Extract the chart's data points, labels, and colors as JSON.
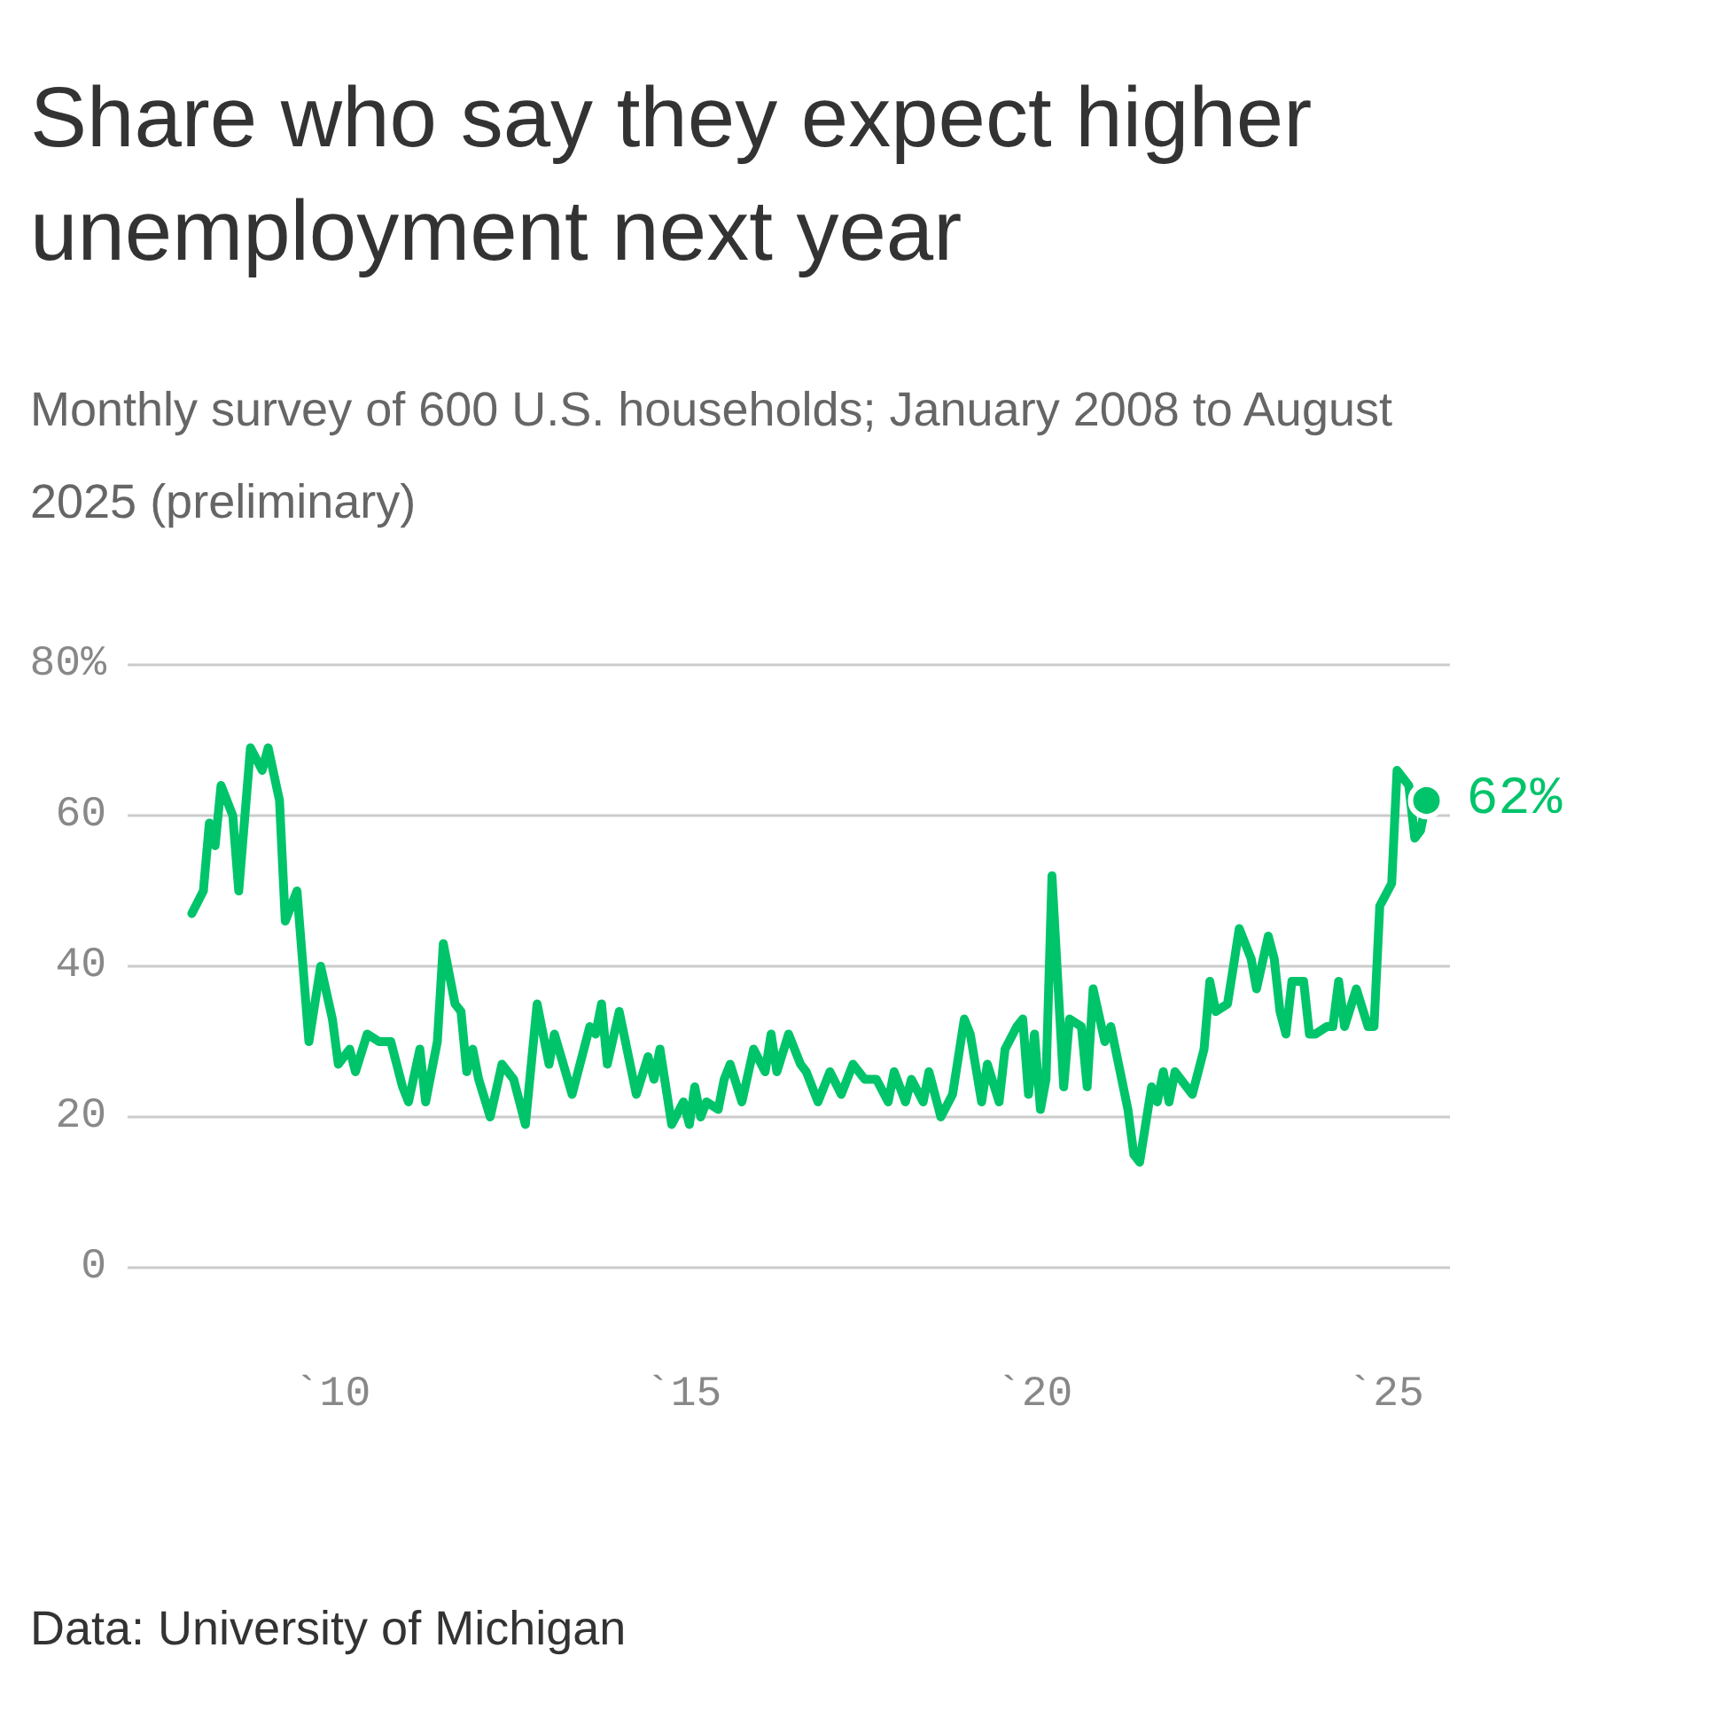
{
  "chart_data": {
    "type": "line",
    "title": "Share who say they expect higher unemployment next year",
    "subtitle": "Monthly survey of 600 U.S. households; January 2008 to August 2025 (preliminary)",
    "annotations": [
      "Data: University of Michigan",
      {
        "text": "62%",
        "x": "2025-08",
        "y": 62
      }
    ],
    "x": [
      "2008-01",
      "2008-03",
      "2008-04",
      "2008-05",
      "2008-06",
      "2008-08",
      "2008-09",
      "2008-11",
      "2009-01",
      "2009-02",
      "2009-04",
      "2009-05",
      "2009-07",
      "2009-09",
      "2009-11",
      "2010-01",
      "2010-02",
      "2010-04",
      "2010-05",
      "2010-07",
      "2010-09",
      "2010-11",
      "2011-01",
      "2011-02",
      "2011-04",
      "2011-05",
      "2011-07",
      "2011-08",
      "2011-10",
      "2011-11",
      "2011-12",
      "2012-01",
      "2012-02",
      "2012-04",
      "2012-06",
      "2012-08",
      "2012-10",
      "2012-12",
      "2013-02",
      "2013-03",
      "2013-06",
      "2013-09",
      "2013-10",
      "2013-11",
      "2013-12",
      "2014-02",
      "2014-05",
      "2014-07",
      "2014-08",
      "2014-09",
      "2014-11",
      "2015-01",
      "2015-02",
      "2015-03",
      "2015-04",
      "2015-05",
      "2015-07",
      "2015-08",
      "2015-09",
      "2015-11",
      "2016-01",
      "2016-03",
      "2016-04",
      "2016-05",
      "2016-07",
      "2016-09",
      "2016-10",
      "2016-12",
      "2017-02",
      "2017-04",
      "2017-06",
      "2017-08",
      "2017-10",
      "2017-12",
      "2018-01",
      "2018-03",
      "2018-04",
      "2018-06",
      "2018-07",
      "2018-09",
      "2018-11",
      "2019-01",
      "2019-02",
      "2019-04",
      "2019-05",
      "2019-07",
      "2019-08",
      "2019-10",
      "2019-11",
      "2019-12",
      "2020-01",
      "2020-02",
      "2020-03",
      "2020-04",
      "2020-06",
      "2020-07",
      "2020-09",
      "2020-10",
      "2020-11",
      "2021-01",
      "2021-02",
      "2021-05",
      "2021-06",
      "2021-07",
      "2021-09",
      "2021-10",
      "2021-11",
      "2021-12",
      "2022-01",
      "2022-04",
      "2022-06",
      "2022-07",
      "2022-08",
      "2022-10",
      "2022-11",
      "2022-12",
      "2023-02",
      "2023-03",
      "2023-05",
      "2023-06",
      "2023-07",
      "2023-08",
      "2023-09",
      "2023-11",
      "2023-12",
      "2024-01",
      "2024-03",
      "2024-04",
      "2024-05",
      "2024-06",
      "2024-08",
      "2024-10",
      "2024-11",
      "2024-12",
      "2025-02",
      "2025-03",
      "2025-05",
      "2025-06",
      "2025-07",
      "2025-08"
    ],
    "series": [
      {
        "color": "#00c46a",
        "values": [
          47,
          50,
          59,
          56,
          64,
          60,
          50,
          69,
          66,
          69,
          62,
          46,
          50,
          30,
          40,
          33,
          27,
          29,
          26,
          31,
          30,
          30,
          24,
          22,
          29,
          22,
          30,
          43,
          35,
          34,
          26,
          29,
          25,
          20,
          27,
          25,
          19,
          35,
          27,
          31,
          23,
          32,
          31,
          35,
          27,
          34,
          23,
          28,
          25,
          29,
          19,
          22,
          19,
          24,
          20,
          22,
          21,
          25,
          27,
          22,
          29,
          26,
          31,
          26,
          31,
          27,
          26,
          22,
          26,
          23,
          27,
          25,
          25,
          22,
          26,
          22,
          25,
          22,
          26,
          20,
          23,
          33,
          31,
          22,
          27,
          22,
          29,
          32,
          33,
          23,
          31,
          21,
          25,
          52,
          24,
          33,
          32,
          24,
          37,
          30,
          32,
          21,
          15,
          14,
          24,
          22,
          26,
          22,
          26,
          23,
          29,
          38,
          34,
          35,
          40,
          45,
          41,
          37,
          44,
          41,
          34,
          31,
          38,
          38,
          31,
          31,
          32,
          32,
          38,
          32,
          37,
          32,
          32,
          48,
          51,
          66,
          64,
          57,
          58,
          62
        ]
      }
    ],
    "xlim": [
      "2007-02",
      "2025-12"
    ],
    "xticks": [
      {
        "value": "2010-01",
        "label": "`10"
      },
      {
        "value": "2015-01",
        "label": "`15"
      },
      {
        "value": "2020-01",
        "label": "`20"
      },
      {
        "value": "2025-01",
        "label": "`25"
      }
    ],
    "ylim": [
      0,
      80
    ],
    "yticks": [
      0,
      20,
      40,
      60,
      {
        "value": 80,
        "label": "80%"
      }
    ],
    "grid": "y",
    "marker": "none",
    "line_style": "solid"
  }
}
